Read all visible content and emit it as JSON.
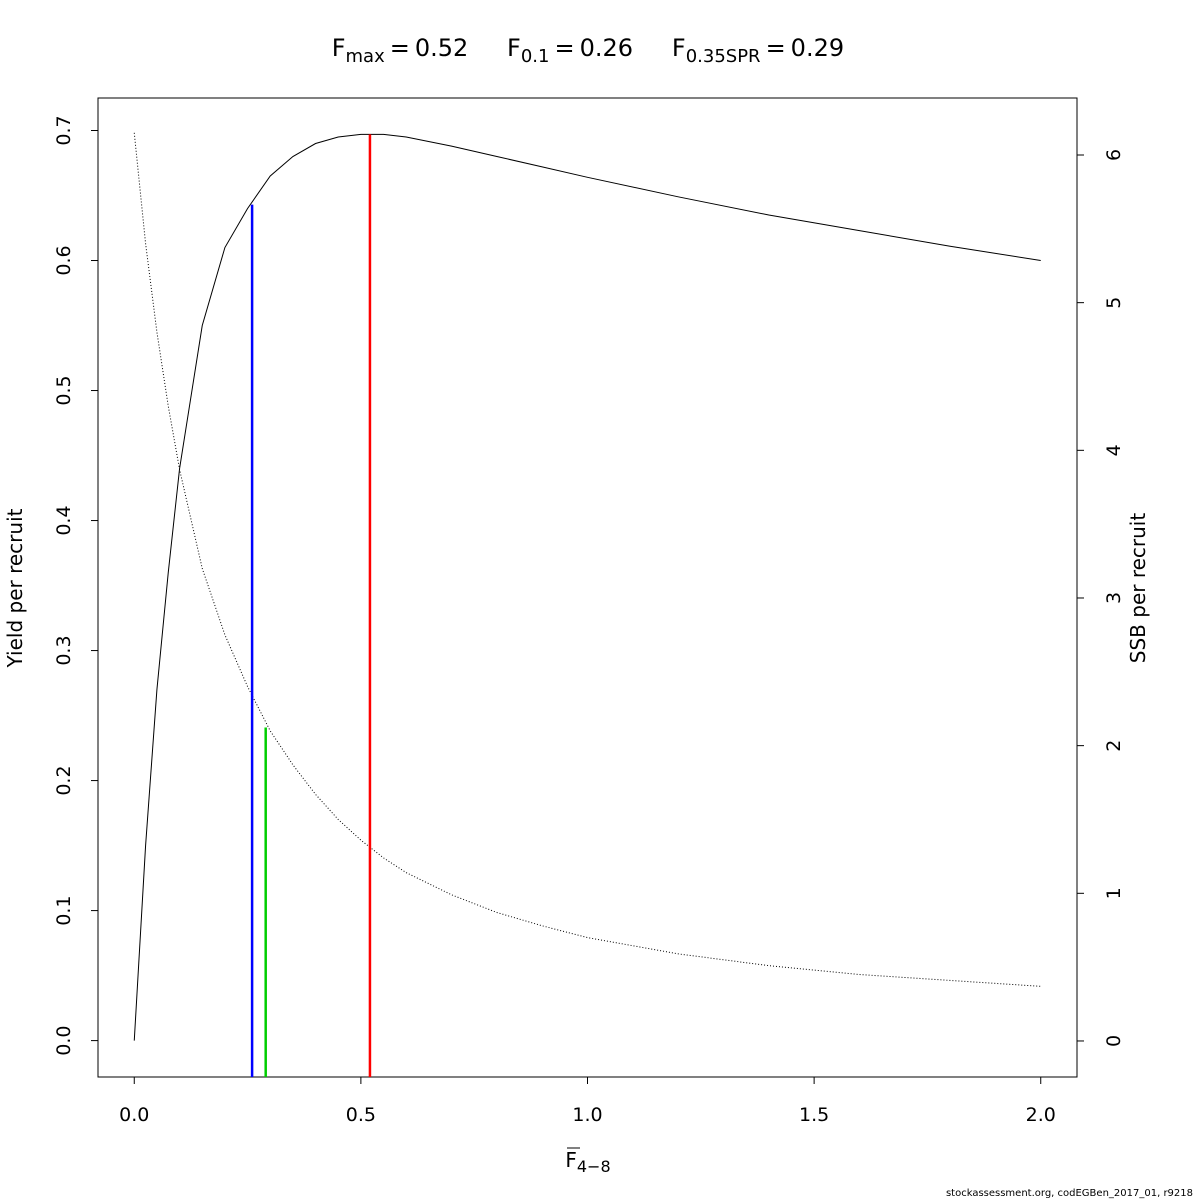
{
  "chart_data": {
    "type": "line",
    "title_items": [
      {
        "base": "F",
        "sub": "max",
        "op": "=",
        "value": 0.52,
        "top": 0.697,
        "color": "#ff0000"
      },
      {
        "base": "F",
        "sub": "0.1",
        "op": "=",
        "value": 0.26,
        "top": 0.643,
        "color": "#0000ff"
      },
      {
        "base": "F",
        "sub": "0.35SPR",
        "op": "=",
        "value": 0.29,
        "top": 0.2408,
        "color": "#00cd00"
      }
    ],
    "xlabel": {
      "base": "F",
      "sub": "4−8"
    },
    "ylabel": "Yield per recruit",
    "y2label": "SSB per recruit",
    "footer": "stockassessment.org, codEGBen_2017_01, r9218",
    "x": [
      0,
      0.025,
      0.05,
      0.075,
      0.1,
      0.15,
      0.2,
      0.25,
      0.3,
      0.35,
      0.4,
      0.45,
      0.5,
      0.55,
      0.6,
      0.7,
      0.8,
      0.9,
      1.0,
      1.2,
      1.4,
      1.6,
      1.8,
      2.0
    ],
    "series": [
      {
        "name": "Yield per recruit",
        "color": "#000000",
        "dash": "solid",
        "values": [
          0,
          0.15,
          0.27,
          0.36,
          0.44,
          0.55,
          0.61,
          0.64,
          0.665,
          0.68,
          0.69,
          0.695,
          0.697,
          0.697,
          0.695,
          0.688,
          0.68,
          0.672,
          0.664,
          0.649,
          0.635,
          0.623,
          0.611,
          0.6
        ]
      },
      {
        "name": "SSB per recruit",
        "color": "#000000",
        "dash": "dotted",
        "axis": "y2",
        "values": [
          6.15,
          5.4,
          4.8,
          4.3,
          3.87,
          3.2,
          2.75,
          2.4,
          2.1,
          1.87,
          1.67,
          1.5,
          1.36,
          1.24,
          1.14,
          0.99,
          0.87,
          0.78,
          0.7,
          0.59,
          0.51,
          0.45,
          0.41,
          0.37
        ]
      }
    ],
    "xlim": [
      -0.08,
      2.08
    ],
    "xticks": [
      {
        "value": 0,
        "label": "0.0"
      },
      0.5,
      {
        "value": 1,
        "label": "1.0"
      },
      1.5,
      {
        "value": 2,
        "label": "2.0"
      }
    ],
    "ylim": [
      -0.028,
      0.725
    ],
    "yticks": [
      {
        "value": 0,
        "label": "0.0"
      },
      0.1,
      0.2,
      0.3,
      0.4,
      0.5,
      0.6,
      0.7
    ],
    "y2lim": [
      -0.244,
      6.386
    ],
    "y2ticks": [
      0,
      1,
      2,
      3,
      4,
      5,
      6
    ]
  }
}
